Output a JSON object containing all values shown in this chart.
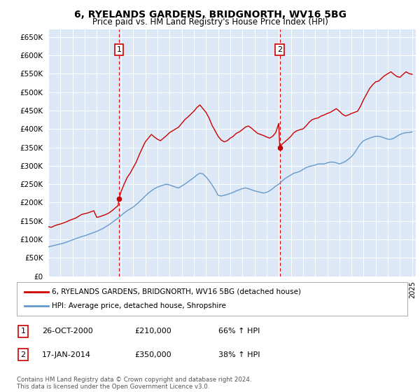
{
  "title": "6, RYELANDS GARDENS, BRIDGNORTH, WV16 5BG",
  "subtitle": "Price paid vs. HM Land Registry's House Price Index (HPI)",
  "legend_label_red": "6, RYELANDS GARDENS, BRIDGNORTH, WV16 5BG (detached house)",
  "legend_label_blue": "HPI: Average price, detached house, Shropshire",
  "sale1_date": "26-OCT-2000",
  "sale1_price": 210000,
  "sale1_label": "1",
  "sale2_date": "17-JAN-2014",
  "sale2_price": 350000,
  "sale2_label": "2",
  "sale1_pct": "66% ↑ HPI",
  "sale2_pct": "38% ↑ HPI",
  "footnote": "Contains HM Land Registry data © Crown copyright and database right 2024.\nThis data is licensed under the Open Government Licence v3.0.",
  "ylim": [
    0,
    670000
  ],
  "yticks": [
    0,
    50000,
    100000,
    150000,
    200000,
    250000,
    300000,
    350000,
    400000,
    450000,
    500000,
    550000,
    600000,
    650000
  ],
  "background_color": "#dce8f5",
  "background_color2": "#e8f2fa",
  "red_color": "#cc0000",
  "blue_color": "#6699cc",
  "dashed_color": "#dd0000",
  "marker_box_color": "#cc0000",
  "red_x": [
    1995.0,
    1995.25,
    1995.5,
    1995.75,
    1996.0,
    1996.25,
    1996.5,
    1996.75,
    1997.0,
    1997.25,
    1997.5,
    1997.75,
    1998.0,
    1998.25,
    1998.5,
    1998.75,
    1999.0,
    1999.25,
    1999.5,
    1999.75,
    2000.0,
    2000.25,
    2000.5,
    2000.75,
    2000.83,
    2001.0,
    2001.25,
    2001.5,
    2001.75,
    2002.0,
    2002.25,
    2002.5,
    2002.75,
    2003.0,
    2003.25,
    2003.5,
    2003.75,
    2004.0,
    2004.25,
    2004.5,
    2004.75,
    2005.0,
    2005.25,
    2005.5,
    2005.75,
    2006.0,
    2006.25,
    2006.5,
    2006.75,
    2007.0,
    2007.25,
    2007.5,
    2007.75,
    2008.0,
    2008.25,
    2008.5,
    2008.75,
    2009.0,
    2009.25,
    2009.5,
    2009.75,
    2010.0,
    2010.25,
    2010.5,
    2010.75,
    2011.0,
    2011.25,
    2011.5,
    2011.75,
    2012.0,
    2012.25,
    2012.5,
    2012.75,
    2013.0,
    2013.25,
    2013.5,
    2013.75,
    2014.0,
    2014.08,
    2014.25,
    2014.5,
    2014.75,
    2015.0,
    2015.25,
    2015.5,
    2015.75,
    2016.0,
    2016.25,
    2016.5,
    2016.75,
    2017.0,
    2017.25,
    2017.5,
    2017.75,
    2018.0,
    2018.25,
    2018.5,
    2018.75,
    2019.0,
    2019.25,
    2019.5,
    2019.75,
    2020.0,
    2020.25,
    2020.5,
    2020.75,
    2021.0,
    2021.25,
    2021.5,
    2021.75,
    2022.0,
    2022.25,
    2022.5,
    2022.75,
    2023.0,
    2023.25,
    2023.5,
    2023.75,
    2024.0,
    2024.25,
    2024.5,
    2024.75,
    2025.0
  ],
  "red_y": [
    135000,
    133000,
    137000,
    140000,
    142000,
    145000,
    148000,
    152000,
    155000,
    158000,
    163000,
    168000,
    170000,
    172000,
    175000,
    178000,
    160000,
    162000,
    165000,
    168000,
    172000,
    178000,
    185000,
    192000,
    210000,
    230000,
    250000,
    268000,
    280000,
    295000,
    310000,
    330000,
    348000,
    365000,
    375000,
    385000,
    378000,
    372000,
    368000,
    375000,
    382000,
    390000,
    395000,
    400000,
    405000,
    415000,
    425000,
    432000,
    440000,
    448000,
    458000,
    465000,
    455000,
    445000,
    430000,
    410000,
    395000,
    380000,
    370000,
    365000,
    368000,
    375000,
    380000,
    388000,
    392000,
    398000,
    405000,
    408000,
    402000,
    395000,
    388000,
    385000,
    382000,
    378000,
    375000,
    380000,
    390000,
    415000,
    350000,
    358000,
    365000,
    372000,
    380000,
    390000,
    395000,
    398000,
    400000,
    408000,
    418000,
    425000,
    428000,
    430000,
    435000,
    438000,
    442000,
    445000,
    450000,
    455000,
    448000,
    440000,
    435000,
    438000,
    442000,
    445000,
    448000,
    462000,
    480000,
    495000,
    510000,
    520000,
    528000,
    530000,
    538000,
    545000,
    550000,
    555000,
    548000,
    542000,
    540000,
    548000,
    555000,
    550000,
    548000
  ],
  "blue_x": [
    1995.0,
    1995.25,
    1995.5,
    1995.75,
    1996.0,
    1996.25,
    1996.5,
    1996.75,
    1997.0,
    1997.25,
    1997.5,
    1997.75,
    1998.0,
    1998.25,
    1998.5,
    1998.75,
    1999.0,
    1999.25,
    1999.5,
    1999.75,
    2000.0,
    2000.25,
    2000.5,
    2000.75,
    2001.0,
    2001.25,
    2001.5,
    2001.75,
    2002.0,
    2002.25,
    2002.5,
    2002.75,
    2003.0,
    2003.25,
    2003.5,
    2003.75,
    2004.0,
    2004.25,
    2004.5,
    2004.75,
    2005.0,
    2005.25,
    2005.5,
    2005.75,
    2006.0,
    2006.25,
    2006.5,
    2006.75,
    2007.0,
    2007.25,
    2007.5,
    2007.75,
    2008.0,
    2008.25,
    2008.5,
    2008.75,
    2009.0,
    2009.25,
    2009.5,
    2009.75,
    2010.0,
    2010.25,
    2010.5,
    2010.75,
    2011.0,
    2011.25,
    2011.5,
    2011.75,
    2012.0,
    2012.25,
    2012.5,
    2012.75,
    2013.0,
    2013.25,
    2013.5,
    2013.75,
    2014.0,
    2014.25,
    2014.5,
    2014.75,
    2015.0,
    2015.25,
    2015.5,
    2015.75,
    2016.0,
    2016.25,
    2016.5,
    2016.75,
    2017.0,
    2017.25,
    2017.5,
    2017.75,
    2018.0,
    2018.25,
    2018.5,
    2018.75,
    2019.0,
    2019.25,
    2019.5,
    2019.75,
    2020.0,
    2020.25,
    2020.5,
    2020.75,
    2021.0,
    2021.25,
    2021.5,
    2021.75,
    2022.0,
    2022.25,
    2022.5,
    2022.75,
    2023.0,
    2023.25,
    2023.5,
    2023.75,
    2024.0,
    2024.25,
    2024.5,
    2024.75,
    2025.0
  ],
  "blue_y": [
    80000,
    82000,
    84000,
    86000,
    88000,
    90000,
    93000,
    96000,
    99000,
    102000,
    105000,
    108000,
    110000,
    113000,
    116000,
    119000,
    122000,
    126000,
    130000,
    135000,
    140000,
    146000,
    152000,
    158000,
    165000,
    172000,
    178000,
    183000,
    188000,
    195000,
    202000,
    210000,
    218000,
    226000,
    232000,
    238000,
    242000,
    245000,
    248000,
    250000,
    248000,
    245000,
    242000,
    240000,
    245000,
    250000,
    256000,
    262000,
    268000,
    275000,
    280000,
    278000,
    270000,
    260000,
    248000,
    235000,
    220000,
    218000,
    220000,
    222000,
    225000,
    228000,
    232000,
    235000,
    238000,
    240000,
    238000,
    235000,
    232000,
    230000,
    228000,
    226000,
    228000,
    232000,
    238000,
    245000,
    250000,
    258000,
    265000,
    270000,
    275000,
    280000,
    282000,
    285000,
    290000,
    295000,
    298000,
    300000,
    302000,
    305000,
    305000,
    305000,
    308000,
    310000,
    310000,
    308000,
    305000,
    308000,
    312000,
    318000,
    325000,
    335000,
    348000,
    360000,
    368000,
    372000,
    375000,
    378000,
    380000,
    380000,
    378000,
    375000,
    372000,
    372000,
    375000,
    380000,
    385000,
    388000,
    390000,
    390000,
    392000
  ]
}
